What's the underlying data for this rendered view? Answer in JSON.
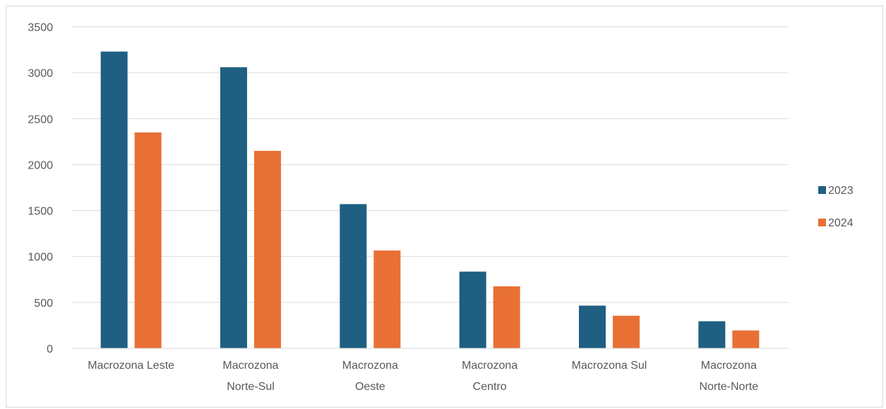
{
  "chart_data": {
    "type": "bar",
    "categories": [
      [
        "Macrozona Leste"
      ],
      [
        "Macrozona",
        "Norte-Sul"
      ],
      [
        "Macrozona",
        "Oeste"
      ],
      [
        "Macrozona",
        "Centro"
      ],
      [
        "Macrozona Sul"
      ],
      [
        "Macrozona",
        "Norte-Norte"
      ]
    ],
    "series": [
      {
        "name": "2023",
        "color": "#1f5f82",
        "values": [
          3230,
          3060,
          1570,
          835,
          465,
          295
        ]
      },
      {
        "name": "2024",
        "color": "#e87035",
        "values": [
          2350,
          2150,
          1065,
          675,
          355,
          195
        ]
      }
    ],
    "yticks": [
      "0",
      "500",
      "1000",
      "1500",
      "2000",
      "2500",
      "3000",
      "3500"
    ],
    "ylim": [
      0,
      3500
    ],
    "grid": true,
    "legend_position": "right",
    "title": "",
    "xlabel": "",
    "ylabel": ""
  }
}
